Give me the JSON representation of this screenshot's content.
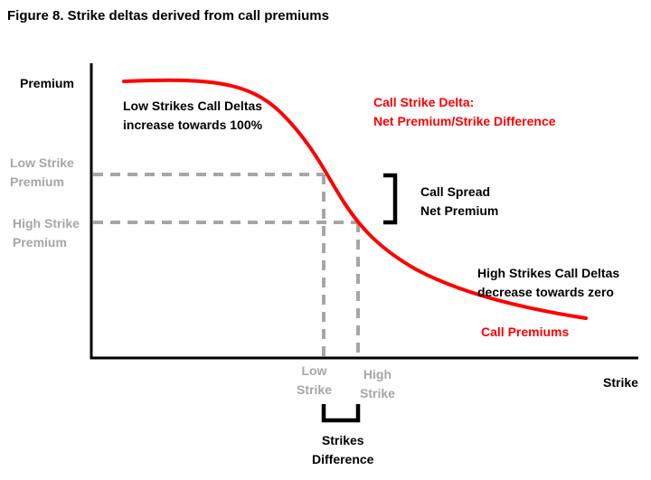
{
  "title": "Figure 8. Strike deltas derived from call premiums",
  "axes": {
    "y_label": "Premium",
    "x_label": "Strike"
  },
  "annotations": {
    "low_strike_premium": [
      "Low Strike",
      "Premium"
    ],
    "high_strike_premium": [
      "High Strike",
      "Premium"
    ],
    "low_strikes_note": [
      "Low Strikes Call Deltas",
      "increase towards 100%"
    ],
    "call_strike_delta": [
      "Call  Strike Delta:",
      "Net Premium/Strike Difference"
    ],
    "call_spread": [
      "Call  Spread",
      "Net Premium"
    ],
    "high_strikes_note": [
      "High Strikes Call Deltas",
      "decrease towards zero"
    ],
    "call_premiums": "Call  Premiums",
    "low_strike": [
      "Low",
      "Strike"
    ],
    "high_strike": [
      "High",
      "Strike"
    ],
    "strikes_difference": [
      "Strikes",
      "Difference"
    ]
  },
  "colors": {
    "curve": "#ff0000",
    "axes": "#000000",
    "guides": "#a6a6a6",
    "red_text": "#ff0000"
  }
}
